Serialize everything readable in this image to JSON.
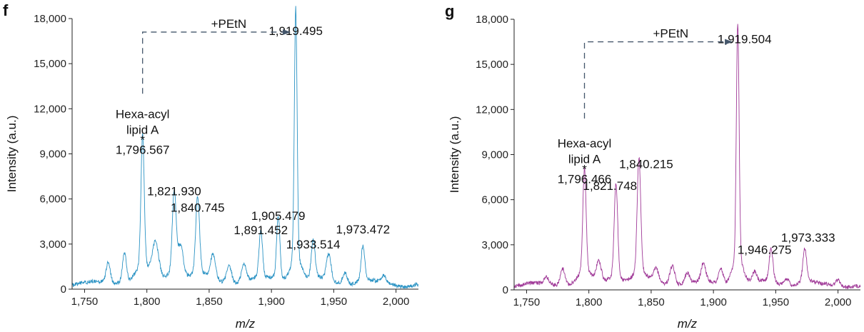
{
  "chart_data": [
    {
      "type": "line",
      "panel_label": "f",
      "color": "#2b93c4",
      "xlabel": "m/z",
      "ylabel": "Intensity (a.u.)",
      "xlim": [
        1740,
        2018
      ],
      "ylim": [
        0,
        18000
      ],
      "xticks": [
        1750,
        1800,
        1850,
        1900,
        1950,
        2000
      ],
      "xtick_labels": [
        "1,750",
        "1,800",
        "1,850",
        "1,900",
        "1,950",
        "2,000"
      ],
      "yticks": [
        0,
        3000,
        6000,
        9000,
        12000,
        15000,
        18000
      ],
      "ytick_labels": [
        "0",
        "3,000",
        "6,000",
        "9,000",
        "12,000",
        "15,000",
        "18,000"
      ],
      "baseline_intensity": 350,
      "peaks": [
        {
          "mz": 1769,
          "intensity": 1400,
          "width": 1.6
        },
        {
          "mz": 1782,
          "intensity": 1900,
          "width": 1.6
        },
        {
          "mz": 1796.567,
          "intensity": 8600,
          "width": 1.3
        },
        {
          "mz": 1807,
          "intensity": 2300,
          "width": 2.5
        },
        {
          "mz": 1821.93,
          "intensity": 5400,
          "width": 1.5
        },
        {
          "mz": 1827,
          "intensity": 2000,
          "width": 2.2
        },
        {
          "mz": 1840.745,
          "intensity": 5000,
          "width": 1.5
        },
        {
          "mz": 1853,
          "intensity": 1600,
          "width": 2.0
        },
        {
          "mz": 1866,
          "intensity": 1100,
          "width": 2.0
        },
        {
          "mz": 1878,
          "intensity": 1200,
          "width": 2.0
        },
        {
          "mz": 1891.452,
          "intensity": 3000,
          "width": 1.4
        },
        {
          "mz": 1905.479,
          "intensity": 4100,
          "width": 1.3
        },
        {
          "mz": 1919.495,
          "intensity": 16500,
          "width": 1.1
        },
        {
          "mz": 1933.514,
          "intensity": 2500,
          "width": 1.5
        },
        {
          "mz": 1946,
          "intensity": 1700,
          "width": 1.8
        },
        {
          "mz": 1959,
          "intensity": 800,
          "width": 1.8
        },
        {
          "mz": 1973.472,
          "intensity": 2300,
          "width": 1.4
        },
        {
          "mz": 1990,
          "intensity": 400,
          "width": 2.0
        }
      ],
      "peak_labels": [
        {
          "text": "1,821.930",
          "mz": 1821.93,
          "intensity": 6250
        },
        {
          "text": "1,840.745",
          "mz": 1840.745,
          "intensity": 5150
        },
        {
          "text": "1,905.479",
          "mz": 1905.479,
          "intensity": 4600
        },
        {
          "text": "1,891.452",
          "mz": 1891.452,
          "intensity": 3650
        },
        {
          "text": "1,933.514",
          "mz": 1933.514,
          "intensity": 2700
        },
        {
          "text": "1,973.472",
          "mz": 1973.472,
          "intensity": 3700
        },
        {
          "text": "1,919.495",
          "mz": 1919.495,
          "intensity": 16900
        }
      ],
      "main_peak": {
        "line1": "Hexa-acyl",
        "line2": "lipid A",
        "star": "*",
        "value": "1,796.567",
        "mz": 1796.567,
        "intensity": 9000
      },
      "shift": {
        "label": "+PEtN",
        "from_mz": 1796.567,
        "to_mz": 1912,
        "y_intensity": 17100,
        "start_intensity": 13000
      }
    },
    {
      "type": "line",
      "panel_label": "g",
      "color": "#a03a98",
      "xlabel": "m/z",
      "ylabel": "Intensity (a.u.)",
      "xlim": [
        1740,
        2018
      ],
      "ylim": [
        0,
        18000
      ],
      "xticks": [
        1750,
        1800,
        1850,
        1900,
        1950,
        2000
      ],
      "xtick_labels": [
        "1,750",
        "1,800",
        "1,850",
        "1,900",
        "1,950",
        "2,000"
      ],
      "yticks": [
        0,
        3000,
        6000,
        9000,
        12000,
        15000,
        18000
      ],
      "ytick_labels": [
        "0",
        "3,000",
        "6,000",
        "9,000",
        "12,000",
        "15,000",
        "18,000"
      ],
      "baseline_intensity": 300,
      "peaks": [
        {
          "mz": 1766,
          "intensity": 500,
          "width": 2.0
        },
        {
          "mz": 1779,
          "intensity": 1100,
          "width": 1.8
        },
        {
          "mz": 1796.466,
          "intensity": 6800,
          "width": 1.3
        },
        {
          "mz": 1808,
          "intensity": 1300,
          "width": 2.0
        },
        {
          "mz": 1821.748,
          "intensity": 6100,
          "width": 1.4
        },
        {
          "mz": 1840.215,
          "intensity": 7500,
          "width": 1.4
        },
        {
          "mz": 1854,
          "intensity": 900,
          "width": 2.0
        },
        {
          "mz": 1867,
          "intensity": 1200,
          "width": 2.0
        },
        {
          "mz": 1879,
          "intensity": 700,
          "width": 2.0
        },
        {
          "mz": 1892,
          "intensity": 1200,
          "width": 1.8
        },
        {
          "mz": 1906,
          "intensity": 1000,
          "width": 1.8
        },
        {
          "mz": 1919.504,
          "intensity": 15700,
          "width": 1.1
        },
        {
          "mz": 1933,
          "intensity": 700,
          "width": 1.8
        },
        {
          "mz": 1946.275,
          "intensity": 2100,
          "width": 1.5
        },
        {
          "mz": 1959,
          "intensity": 500,
          "width": 1.8
        },
        {
          "mz": 1973.333,
          "intensity": 2200,
          "width": 1.5
        },
        {
          "mz": 2000,
          "intensity": 400,
          "width": 1.8
        }
      ],
      "peak_labels": [
        {
          "text": "1,840.215",
          "mz": 1846,
          "intensity": 8100
        },
        {
          "text": "1,821.748",
          "mz": 1817,
          "intensity": 6650
        },
        {
          "text": "1,946.275",
          "mz": 1941,
          "intensity": 2400
        },
        {
          "text": "1,973.333",
          "mz": 1976,
          "intensity": 3200
        },
        {
          "text": "1,919.504",
          "mz": 1925,
          "intensity": 16400
        }
      ],
      "main_peak": {
        "line1": "Hexa-acyl",
        "line2": "lipid A",
        "star": "*",
        "value": "1,796.466",
        "mz": 1796.466,
        "intensity": 7100
      },
      "shift": {
        "label": "+PEtN",
        "from_mz": 1796.466,
        "to_mz": 1912,
        "y_intensity": 16500,
        "start_intensity": 11400
      }
    }
  ]
}
